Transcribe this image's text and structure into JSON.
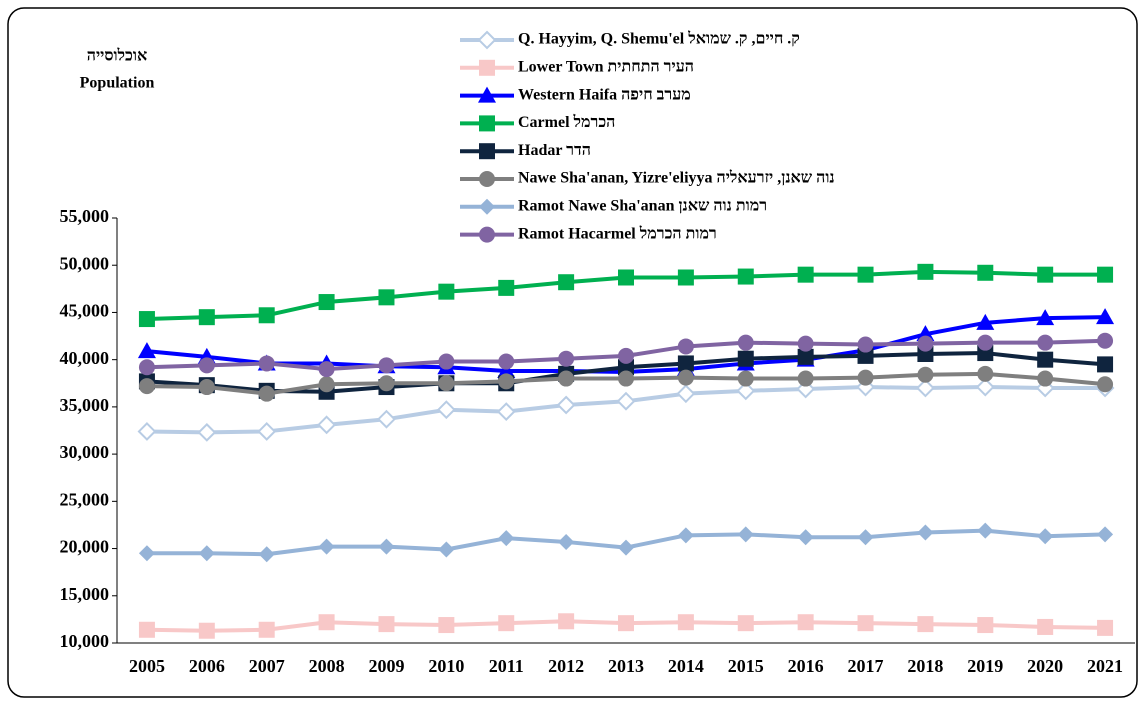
{
  "chart_data": {
    "type": "line",
    "y_axis_title_he": "אוכלוסייה",
    "y_axis_title": "Population",
    "categories": [
      "2005",
      "2006",
      "2007",
      "2008",
      "2009",
      "2010",
      "2011",
      "2012",
      "2013",
      "2014",
      "2015",
      "2016",
      "2017",
      "2018",
      "2019",
      "2020",
      "2021"
    ],
    "ylim": [
      10000,
      55000
    ],
    "yticks": [
      {
        "value": 10000,
        "label": "10,000"
      },
      {
        "value": 15000,
        "label": "15,000"
      },
      {
        "value": 20000,
        "label": "20,000"
      },
      {
        "value": 25000,
        "label": "25,000"
      },
      {
        "value": 30000,
        "label": "30,000"
      },
      {
        "value": 35000,
        "label": "35,000"
      },
      {
        "value": 40000,
        "label": "40,000"
      },
      {
        "value": 45000,
        "label": "45,000"
      },
      {
        "value": 50000,
        "label": "50,000"
      },
      {
        "value": 55000,
        "label": "55,000"
      }
    ],
    "grid": false,
    "legend": "top",
    "series": [
      {
        "name": "Q. Hayyim, Q. Shemu'el  ק. חיים, ק. שמואל",
        "color": "#b8cce4",
        "marker": "diamond-open",
        "values": [
          32400,
          32300,
          32400,
          33100,
          33700,
          34700,
          34500,
          35200,
          35600,
          36400,
          36700,
          36900,
          37100,
          37000,
          37100,
          37000,
          37000
        ]
      },
      {
        "name": "Lower Town   העיר התחתית",
        "color": "#f8c8c8",
        "marker": "square",
        "values": [
          11400,
          11300,
          11400,
          12200,
          12000,
          11900,
          12100,
          12300,
          12100,
          12200,
          12100,
          12200,
          12100,
          12000,
          11900,
          11700,
          11600
        ]
      },
      {
        "name": "Western Haifa   מערב חיפה",
        "color": "#0000ff",
        "marker": "triangle",
        "values": [
          40900,
          40300,
          39600,
          39600,
          39300,
          39200,
          38800,
          38800,
          38700,
          39000,
          39600,
          40000,
          41000,
          42700,
          43900,
          44400,
          44500
        ]
      },
      {
        "name": "Carmel   הכרמל",
        "color": "#00b050",
        "marker": "square",
        "values": [
          44300,
          44500,
          44700,
          46100,
          46600,
          47200,
          47600,
          48200,
          48700,
          48700,
          48800,
          49000,
          49000,
          49300,
          49200,
          49000,
          49000
        ]
      },
      {
        "name": "Hadar   הדר",
        "color": "#0f243e",
        "marker": "square",
        "values": [
          37700,
          37300,
          36700,
          36600,
          37100,
          37500,
          37500,
          38500,
          39200,
          39600,
          40100,
          40300,
          40400,
          40600,
          40700,
          40000,
          39500
        ]
      },
      {
        "name": "Nawe Sha'anan, Yizre'eliyya   נוה שאנן, יזרעאליה",
        "color": "#7f7f7f",
        "marker": "circle",
        "values": [
          37200,
          37100,
          36400,
          37400,
          37500,
          37500,
          37700,
          38000,
          38000,
          38100,
          38000,
          38000,
          38100,
          38400,
          38500,
          38000,
          37400
        ]
      },
      {
        "name": "Ramot Nawe Sha'anan   רמות נוה שאנן",
        "color": "#95b3d7",
        "marker": "diamond",
        "values": [
          19500,
          19500,
          19400,
          20200,
          20200,
          19900,
          21100,
          20700,
          20100,
          21400,
          21500,
          21200,
          21200,
          21700,
          21900,
          21300,
          21500
        ]
      },
      {
        "name": "Ramot Hacarmel  רמות הכרמל",
        "color": "#8064a2",
        "marker": "circle",
        "values": [
          39200,
          39400,
          39600,
          39000,
          39400,
          39800,
          39800,
          40100,
          40400,
          41400,
          41800,
          41700,
          41600,
          41700,
          41800,
          41800,
          42000
        ]
      }
    ]
  }
}
